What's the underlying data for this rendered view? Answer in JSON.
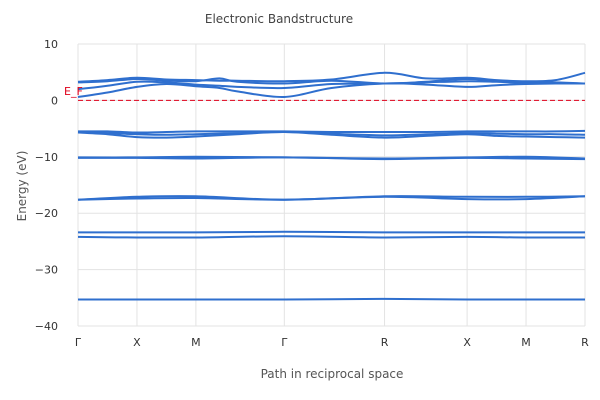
{
  "chart_data": {
    "type": "line",
    "title": "Electronic Bandstructure",
    "xlabel": "Path in reciprocal space",
    "ylabel": "Energy (eV)",
    "ylim": [
      -40,
      10
    ],
    "yticks": [
      10,
      0,
      -10,
      -20,
      -30,
      -40
    ],
    "ytick_labels": [
      "10",
      "0",
      "−10",
      "−20",
      "−30",
      "−40"
    ],
    "kpoints": [
      "Γ",
      "X",
      "M",
      "Γ",
      "R",
      "X",
      "M",
      "R"
    ],
    "kpath": [
      0,
      1,
      2,
      3.5,
      5.2,
      6.6,
      7.6,
      8.6
    ],
    "grid": true,
    "fermi_level": {
      "energy": 0,
      "label": "E_F",
      "color": "#e0001b"
    },
    "line_color": "#2f6fce",
    "series": [
      {
        "x": [
          0,
          1,
          1.6,
          2,
          3.5,
          5.2,
          6.6,
          7.6,
          8.6
        ],
        "values": [
          -35.3,
          -35.3,
          -35.3,
          -35.3,
          -35.3,
          -35.2,
          -35.3,
          -35.3,
          -35.3
        ]
      },
      {
        "x": [
          0,
          1,
          2,
          3.5,
          5.2,
          6.6,
          7.6,
          8.6
        ],
        "values": [
          -24.2,
          -24.3,
          -24.3,
          -24.1,
          -24.3,
          -24.2,
          -24.3,
          -24.3
        ]
      },
      {
        "x": [
          0,
          1,
          2,
          3.5,
          5.2,
          6.6,
          7.6,
          8.6
        ],
        "values": [
          -23.4,
          -23.4,
          -23.4,
          -23.3,
          -23.4,
          -23.4,
          -23.4,
          -23.4
        ]
      },
      {
        "x": [
          0,
          1,
          2,
          3.5,
          5.2,
          6.6,
          7.6,
          8.6
        ],
        "values": [
          -17.6,
          -17.1,
          -17.0,
          -17.6,
          -17.0,
          -17.1,
          -17.1,
          -17.0
        ]
      },
      {
        "x": [
          0,
          1,
          2,
          3.5,
          5.2,
          6.6,
          7.6,
          8.6
        ],
        "values": [
          -17.6,
          -17.4,
          -17.3,
          -17.6,
          -17.1,
          -17.5,
          -17.5,
          -17.0
        ]
      },
      {
        "x": [
          0,
          1,
          2,
          3.5,
          5.2,
          6.6,
          7.6,
          8.6
        ],
        "values": [
          -10.1,
          -10.1,
          -10.0,
          -10.1,
          -10.3,
          -10.1,
          -10.0,
          -10.3
        ]
      },
      {
        "x": [
          0,
          1,
          2,
          3.5,
          5.2,
          6.6,
          7.6,
          8.6
        ],
        "values": [
          -10.2,
          -10.2,
          -10.3,
          -10.1,
          -10.4,
          -10.2,
          -10.3,
          -10.4
        ]
      },
      {
        "x": [
          0,
          0.5,
          1,
          1.5,
          2,
          2.7,
          3.5,
          4.3,
          5.2,
          5.9,
          6.6,
          7.1,
          7.6,
          8.1,
          8.6
        ],
        "values": [
          -5.5,
          -5.5,
          -5.7,
          -5.6,
          -5.5,
          -5.5,
          -5.5,
          -5.6,
          -5.6,
          -5.6,
          -5.5,
          -5.5,
          -5.5,
          -5.5,
          -5.4
        ]
      },
      {
        "x": [
          0,
          0.5,
          1,
          1.5,
          2,
          2.7,
          3.5,
          4.3,
          5.2,
          5.9,
          6.6,
          7.1,
          7.6,
          8.1,
          8.6
        ],
        "values": [
          -5.6,
          -5.8,
          -6.0,
          -6.1,
          -6.0,
          -5.8,
          -5.6,
          -5.9,
          -6.2,
          -6.0,
          -5.8,
          -5.9,
          -6.0,
          -6.0,
          -6.1
        ]
      },
      {
        "x": [
          0,
          0.5,
          1,
          1.5,
          2,
          2.7,
          3.5,
          4.3,
          5.2,
          5.9,
          6.6,
          7.1,
          7.6,
          8.1,
          8.6
        ],
        "values": [
          -5.7,
          -6.0,
          -6.5,
          -6.6,
          -6.4,
          -6.0,
          -5.6,
          -6.1,
          -6.6,
          -6.3,
          -6.0,
          -6.3,
          -6.4,
          -6.5,
          -6.6
        ]
      },
      {
        "x": [
          0,
          0.5,
          1,
          1.5,
          2,
          2.4,
          2.7,
          3.5,
          4.3,
          5.2,
          5.9,
          6.6,
          7.1,
          7.6,
          8.1,
          8.6
        ],
        "values": [
          0.6,
          1.4,
          2.4,
          2.9,
          2.5,
          2.2,
          1.6,
          0.6,
          2.2,
          3.0,
          2.8,
          2.4,
          2.7,
          2.9,
          3.0,
          3.0
        ]
      },
      {
        "x": [
          0,
          0.5,
          1,
          1.5,
          2,
          2.4,
          2.7,
          3.5,
          4.3,
          5.2,
          5.9,
          6.6,
          7.1,
          7.6,
          8.1,
          8.6
        ],
        "values": [
          2.0,
          2.6,
          3.3,
          3.2,
          2.8,
          2.6,
          2.4,
          2.2,
          2.9,
          3.0,
          3.2,
          3.4,
          3.3,
          3.1,
          3.0,
          3.0
        ]
      },
      {
        "x": [
          0,
          0.5,
          1,
          1.5,
          2,
          2.4,
          2.7,
          3.5,
          4.3,
          5.2,
          5.9,
          6.6,
          7.1,
          7.6,
          8.1,
          8.6
        ],
        "values": [
          3.2,
          3.4,
          3.8,
          3.5,
          3.4,
          3.9,
          3.3,
          3.0,
          3.5,
          3.0,
          3.3,
          3.8,
          3.4,
          3.3,
          3.2,
          3.0
        ]
      },
      {
        "x": [
          0,
          0.5,
          1,
          1.5,
          2,
          2.4,
          2.7,
          3.5,
          4.3,
          5.2,
          5.9,
          6.6,
          7.1,
          7.6,
          8.1,
          8.6
        ],
        "values": [
          3.3,
          3.6,
          4.0,
          3.7,
          3.6,
          3.5,
          3.5,
          3.4,
          3.7,
          4.9,
          3.9,
          4.0,
          3.6,
          3.4,
          3.6,
          4.9
        ]
      }
    ]
  }
}
